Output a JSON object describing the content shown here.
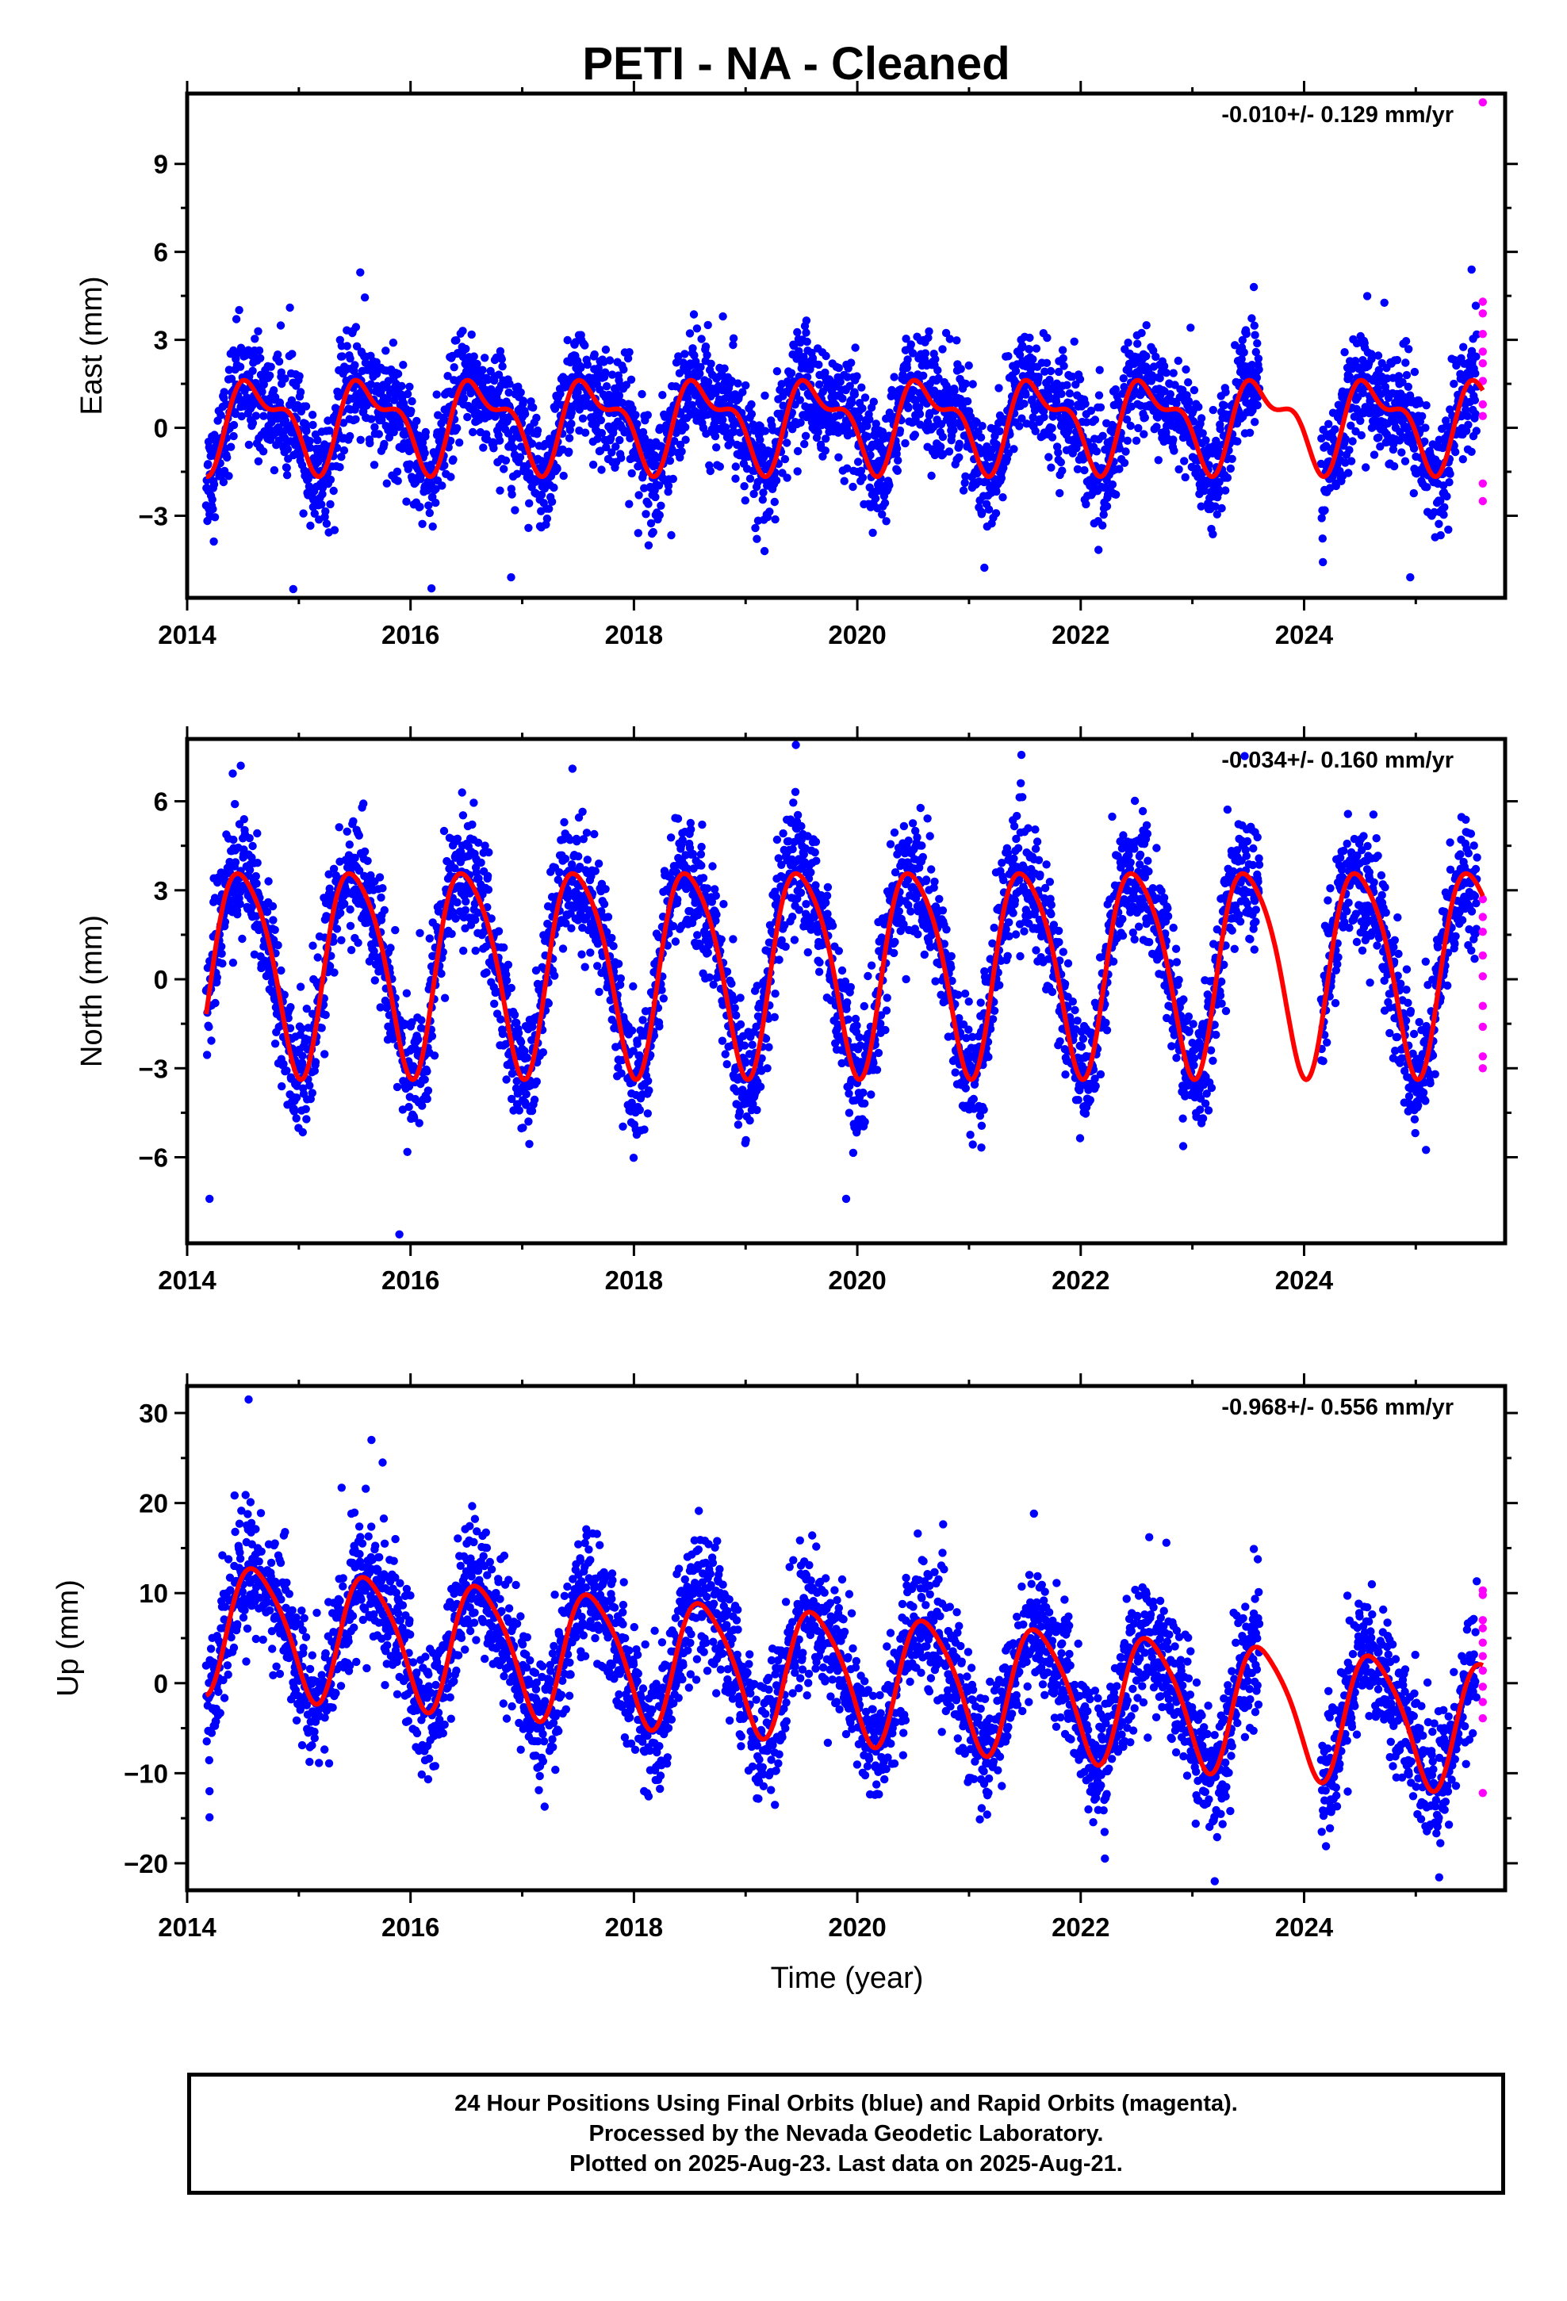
{
  "figure": {
    "title": "PETI  - NA - Cleaned",
    "xlabel": "Time (year)",
    "colors": {
      "final": "#0000ff",
      "rapid": "#ff00ff",
      "model": "#ff0000"
    }
  },
  "chart_data": [
    {
      "type": "scatter",
      "component": "east",
      "ylabel": "East (mm)",
      "rate": "-0.010+/- 0.129 mm/yr",
      "xlim": [
        2014.0,
        2025.8
      ],
      "ylim": [
        -5.8,
        11.4
      ],
      "xticks": [
        2014,
        2016,
        2018,
        2020,
        2022,
        2024
      ],
      "xtick_labels": [
        "2014",
        "2016",
        "2018",
        "2020",
        "2022",
        "2024"
      ],
      "yticks": [
        -3,
        0,
        3,
        6,
        9
      ],
      "ytick_labels": [
        "−3",
        "0",
        "3",
        "6",
        "9"
      ],
      "data_span": [
        2014.17,
        2025.55
      ],
      "gaps": [
        [
          2023.6,
          2024.15
        ]
      ],
      "model": {
        "offset": 0.2,
        "annual_amp": 1.3,
        "annual_phase": 2014.38,
        "semiannual_amp": 0.65,
        "semiannual_phase": 2014.45,
        "scatter_sd": 0.95
      },
      "rapid_points": [
        [
          2025.6,
          11.1
        ],
        [
          2025.6,
          4.3
        ],
        [
          2025.6,
          3.9
        ],
        [
          2025.6,
          3.2
        ],
        [
          2025.6,
          2.6
        ],
        [
          2025.6,
          2.2
        ],
        [
          2025.6,
          1.6
        ],
        [
          2025.6,
          0.8
        ],
        [
          2025.6,
          0.4
        ],
        [
          2025.6,
          -1.9
        ],
        [
          2025.6,
          -2.5
        ]
      ],
      "outliers": [
        [
          2014.95,
          -5.5
        ],
        [
          2016.9,
          -5.1
        ],
        [
          2024.95,
          -5.1
        ],
        [
          2015.55,
          5.3
        ],
        [
          2023.55,
          4.8
        ],
        [
          2025.5,
          5.4
        ]
      ]
    },
    {
      "type": "scatter",
      "component": "north",
      "ylabel": "North (mm)",
      "rate": "-0.034+/- 0.160 mm/yr",
      "xlim": [
        2014.0,
        2025.8
      ],
      "ylim": [
        -8.9,
        8.1
      ],
      "xticks": [
        2014,
        2016,
        2018,
        2020,
        2022,
        2024
      ],
      "xtick_labels": [
        "2014",
        "2016",
        "2018",
        "2020",
        "2022",
        "2024"
      ],
      "yticks": [
        -6,
        -3,
        0,
        3,
        6
      ],
      "ytick_labels": [
        "−6",
        "−3",
        "0",
        "3",
        "6"
      ],
      "data_span": [
        2014.17,
        2025.55
      ],
      "gaps": [
        [
          2023.6,
          2024.15
        ]
      ],
      "model": {
        "offset": 0.5,
        "annual_amp": 3.4,
        "annual_phase": 2014.25,
        "semiannual_amp": 0.55,
        "semiannual_phase": 2014.3,
        "scatter_sd": 1.05
      },
      "rapid_points": [
        [
          2025.6,
          2.7
        ],
        [
          2025.6,
          2.1
        ],
        [
          2025.6,
          1.6
        ],
        [
          2025.6,
          0.8
        ],
        [
          2025.6,
          0.1
        ],
        [
          2025.6,
          -0.9
        ],
        [
          2025.6,
          -1.6
        ],
        [
          2025.6,
          -2.6
        ],
        [
          2025.6,
          -3.0
        ]
      ],
      "outliers": [
        [
          2014.2,
          -7.4
        ],
        [
          2015.9,
          -8.6
        ],
        [
          2019.45,
          7.9
        ],
        [
          2014.48,
          7.2
        ],
        [
          2017.45,
          7.1
        ],
        [
          2019.9,
          -7.4
        ]
      ]
    },
    {
      "type": "scatter",
      "component": "up",
      "ylabel": "Up (mm)",
      "rate": "-0.968+/- 0.556 mm/yr",
      "xlim": [
        2014.0,
        2025.8
      ],
      "ylim": [
        -23.0,
        33.0
      ],
      "xticks": [
        2014,
        2016,
        2018,
        2020,
        2022,
        2024
      ],
      "xtick_labels": [
        "2014",
        "2016",
        "2018",
        "2020",
        "2022",
        "2024"
      ],
      "yticks": [
        -20,
        -10,
        0,
        10,
        20,
        30
      ],
      "ytick_labels": [
        "−20",
        "−10",
        "0",
        "10",
        "20",
        "30"
      ],
      "data_span": [
        2014.17,
        2025.55
      ],
      "gaps": [
        [
          2023.6,
          2024.15
        ]
      ],
      "model": {
        "offset": 6.5,
        "trend": -0.968,
        "annual_amp": 7.0,
        "annual_phase": 2014.38,
        "semiannual_amp": 1.2,
        "semiannual_phase": 2014.45,
        "scatter_sd": 3.6
      },
      "rapid_points": [
        [
          2025.6,
          10.3
        ],
        [
          2025.6,
          9.8
        ],
        [
          2025.6,
          7.0
        ],
        [
          2025.6,
          6.1
        ],
        [
          2025.6,
          4.5
        ],
        [
          2025.6,
          3.0
        ],
        [
          2025.6,
          1.4
        ],
        [
          2025.6,
          -0.4
        ],
        [
          2025.6,
          -2.1
        ],
        [
          2025.6,
          -3.9
        ],
        [
          2025.6,
          -12.2
        ]
      ],
      "outliers": [
        [
          2014.55,
          31.5
        ],
        [
          2015.65,
          27.0
        ],
        [
          2015.75,
          24.5
        ],
        [
          2023.55,
          14.9
        ],
        [
          2023.2,
          -22.0
        ],
        [
          2014.2,
          -12.0
        ],
        [
          2014.2,
          -14.9
        ]
      ]
    }
  ],
  "footer": {
    "line1": "24 Hour Positions Using Final Orbits (blue) and Rapid Orbits (magenta).",
    "line2": "Processed by the Nevada Geodetic Laboratory.",
    "line3": "Plotted on 2025-Aug-23. Last data on 2025-Aug-21."
  }
}
